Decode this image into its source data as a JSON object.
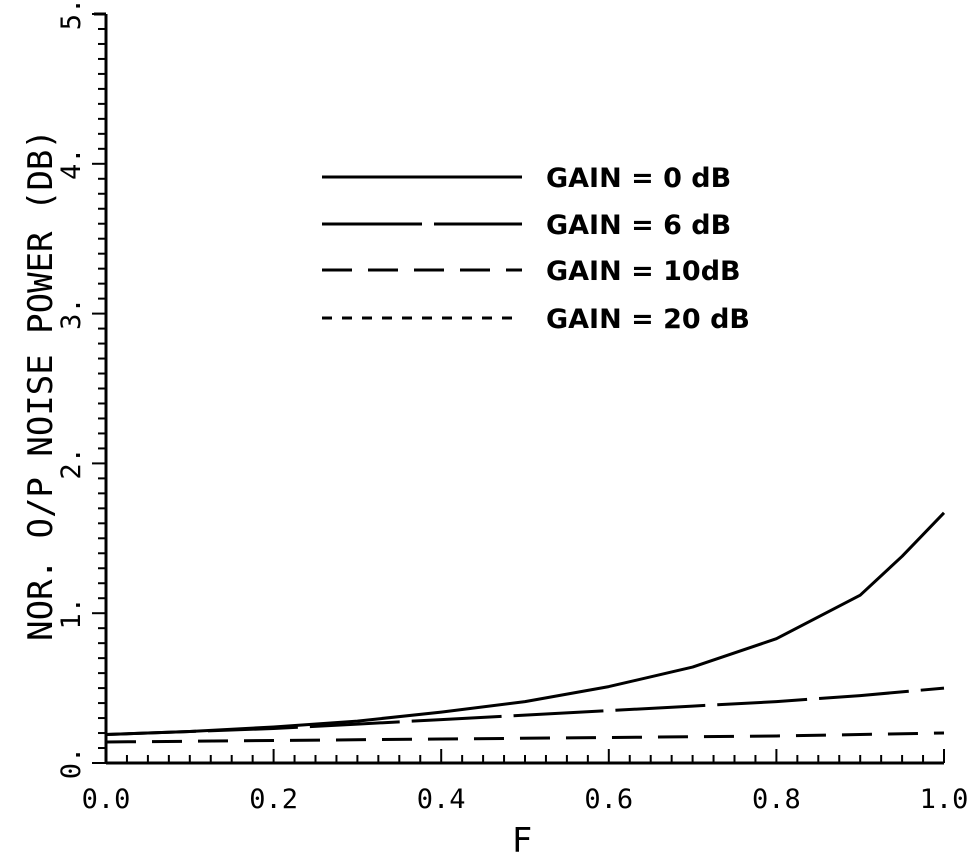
{
  "chart_data": {
    "type": "line",
    "xlabel": "F",
    "ylabel": "NOR. O/P NOISE POWER (DB)",
    "xlim": [
      0.0,
      1.0
    ],
    "ylim": [
      0.0,
      5.0
    ],
    "x_ticks": [
      "0.0",
      "0.2",
      "0.4",
      "0.6",
      "0.8",
      "1.0"
    ],
    "y_ticks": [
      "0.",
      "1.",
      "2.",
      "3.",
      "4.",
      "5."
    ],
    "legend_position": "top-center",
    "series": [
      {
        "name": "GAIN = 0 dB",
        "dash": "solid",
        "x": [
          0.0,
          0.1,
          0.2,
          0.3,
          0.4,
          0.5,
          0.6,
          0.7,
          0.8,
          0.9,
          0.95,
          1.0
        ],
        "y": [
          0.19,
          0.21,
          0.24,
          0.28,
          0.34,
          0.41,
          0.51,
          0.64,
          0.83,
          1.12,
          1.38,
          1.67
        ]
      },
      {
        "name": "GAIN = 6 dB",
        "dash": "long-dash",
        "x": [
          0.0,
          0.1,
          0.2,
          0.3,
          0.4,
          0.5,
          0.6,
          0.7,
          0.8,
          0.9,
          1.0
        ],
        "y": [
          0.19,
          0.21,
          0.23,
          0.26,
          0.29,
          0.32,
          0.35,
          0.38,
          0.41,
          0.45,
          0.5
        ]
      },
      {
        "name": "GAIN = 10dB",
        "dash": "dash",
        "x": [
          0.0,
          0.2,
          0.4,
          0.6,
          0.8,
          1.0
        ],
        "y": [
          0.14,
          0.15,
          0.16,
          0.17,
          0.18,
          0.2
        ]
      },
      {
        "name": "GAIN = 20 dB",
        "dash": "dot",
        "x": [],
        "y": []
      }
    ]
  }
}
